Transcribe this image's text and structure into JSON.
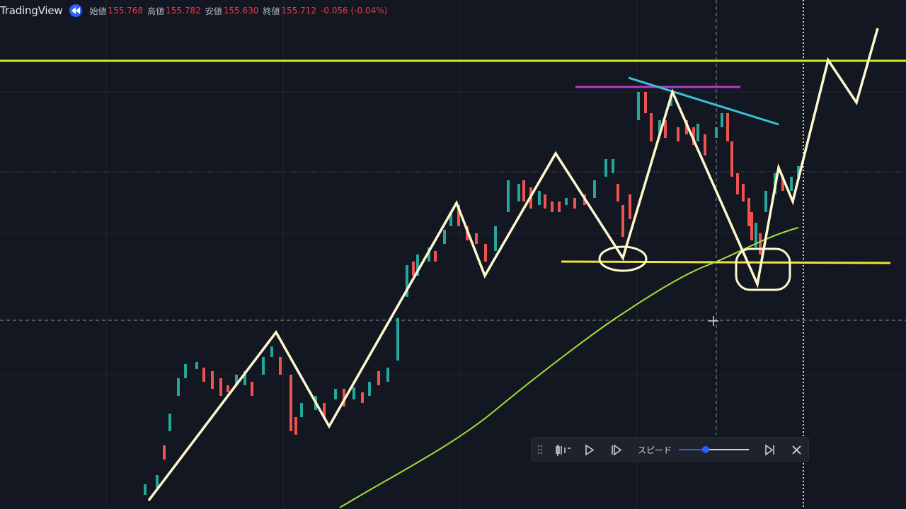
{
  "header": {
    "brand": "TradingView",
    "ohlc": [
      {
        "label": "始値",
        "value": "155.768"
      },
      {
        "label": "高値",
        "value": "155.782"
      },
      {
        "label": "安値",
        "value": "155.630"
      },
      {
        "label": "終値",
        "value": "155.712"
      }
    ],
    "change": "-0.056 (-0.04%)"
  },
  "replay_toolbar": {
    "speed_label": "スピード"
  }
}
